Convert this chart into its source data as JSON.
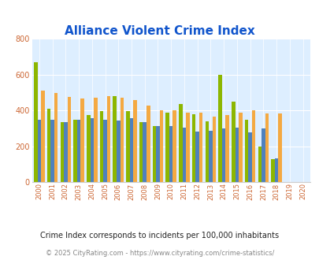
{
  "title": "Alliance Violent Crime Index",
  "years": [
    2000,
    2001,
    2002,
    2003,
    2004,
    2005,
    2006,
    2007,
    2008,
    2009,
    2010,
    2011,
    2012,
    2013,
    2014,
    2015,
    2016,
    2017,
    2018,
    2019,
    2020
  ],
  "alliance": [
    670,
    410,
    335,
    350,
    375,
    395,
    480,
    395,
    335,
    312,
    390,
    435,
    377,
    338,
    600,
    450,
    348,
    200,
    127,
    null,
    null
  ],
  "ohio": [
    350,
    350,
    335,
    350,
    355,
    350,
    345,
    355,
    335,
    312,
    312,
    302,
    280,
    288,
    300,
    303,
    278,
    298,
    134,
    null,
    null
  ],
  "national": [
    510,
    500,
    478,
    468,
    473,
    480,
    470,
    457,
    428,
    401,
    403,
    388,
    388,
    368,
    376,
    390,
    400,
    385,
    383,
    null,
    null
  ],
  "alliance_color": "#8db600",
  "ohio_color": "#4f81bd",
  "national_color": "#f4a942",
  "bg_color": "#ddeeff",
  "ylim": [
    0,
    800
  ],
  "yticks": [
    0,
    200,
    400,
    600,
    800
  ],
  "subtitle": "Crime Index corresponds to incidents per 100,000 inhabitants",
  "footer": "© 2025 CityRating.com - https://www.cityrating.com/crime-statistics/",
  "bar_width": 0.27,
  "title_color": "#1155cc",
  "subtitle_color": "#222222",
  "footer_color": "#888888",
  "tick_color": "#cc6633"
}
